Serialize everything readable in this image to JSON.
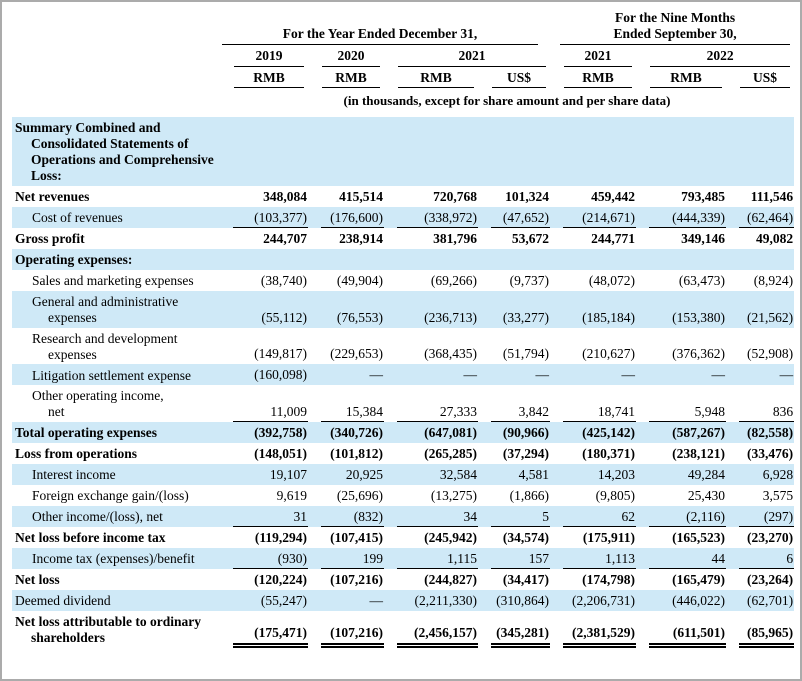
{
  "table": {
    "group_headers": [
      {
        "label": "For the Year Ended December 31,",
        "colspan": 4
      },
      {
        "label": "For the Nine Months\nEnded September 30,",
        "colspan": 3
      }
    ],
    "year_headers": [
      {
        "label": "2019",
        "colspan": 1
      },
      {
        "label": "2020",
        "colspan": 1
      },
      {
        "label": "2021",
        "colspan": 2
      },
      {
        "label": "2021",
        "colspan": 1
      },
      {
        "label": "2022",
        "colspan": 2
      }
    ],
    "currency_headers": [
      "RMB",
      "RMB",
      "RMB",
      "US$",
      "RMB",
      "RMB",
      "US$"
    ],
    "note": "(in thousands, except for share amount and per share data)",
    "shade_color": "#cfe9f7",
    "rows": [
      {
        "label": "Summary Combined and\nConsolidated Statements of\nOperations and Comprehensive\nLoss:",
        "bold": true,
        "indent": false,
        "shaded": true,
        "underline": "none",
        "values": [
          "",
          "",
          "",
          "",
          "",
          "",
          ""
        ]
      },
      {
        "label": "Net revenues",
        "bold": true,
        "indent": false,
        "shaded": false,
        "underline": "none",
        "values": [
          "348,084",
          "415,514",
          "720,768",
          "101,324",
          "459,442",
          "793,485",
          "111,546"
        ]
      },
      {
        "label": "Cost of revenues",
        "bold": false,
        "indent": true,
        "shaded": true,
        "underline": "single",
        "values": [
          "(103,377)",
          "(176,600)",
          "(338,972)",
          "(47,652)",
          "(214,671)",
          "(444,339)",
          "(62,464)"
        ]
      },
      {
        "label": "Gross profit",
        "bold": true,
        "indent": false,
        "shaded": false,
        "underline": "none",
        "values": [
          "244,707",
          "238,914",
          "381,796",
          "53,672",
          "244,771",
          "349,146",
          "49,082"
        ]
      },
      {
        "label": "Operating expenses:",
        "bold": true,
        "indent": false,
        "shaded": true,
        "underline": "none",
        "values": [
          "",
          "",
          "",
          "",
          "",
          "",
          ""
        ]
      },
      {
        "label": "Sales and marketing expenses",
        "bold": false,
        "indent": true,
        "shaded": false,
        "underline": "none",
        "values": [
          "(38,740)",
          "(49,904)",
          "(69,266)",
          "(9,737)",
          "(48,072)",
          "(63,473)",
          "(8,924)"
        ]
      },
      {
        "label": "General and administrative\nexpenses",
        "bold": false,
        "indent": true,
        "shaded": true,
        "underline": "none",
        "values": [
          "(55,112)",
          "(76,553)",
          "(236,713)",
          "(33,277)",
          "(185,184)",
          "(153,380)",
          "(21,562)"
        ]
      },
      {
        "label": "Research and development\nexpenses",
        "bold": false,
        "indent": true,
        "shaded": false,
        "underline": "none",
        "values": [
          "(149,817)",
          "(229,653)",
          "(368,435)",
          "(51,794)",
          "(210,627)",
          "(376,362)",
          "(52,908)"
        ]
      },
      {
        "label": "Litigation settlement expense",
        "bold": false,
        "indent": true,
        "shaded": true,
        "underline": "none",
        "values": [
          "(160,098)",
          "—",
          "—",
          "—",
          "—",
          "—",
          "—"
        ]
      },
      {
        "label": "Other operating income,\nnet",
        "bold": false,
        "indent": true,
        "shaded": false,
        "underline": "single",
        "values": [
          "11,009",
          "15,384",
          "27,333",
          "3,842",
          "18,741",
          "5,948",
          "836"
        ]
      },
      {
        "label": "Total operating expenses",
        "bold": true,
        "indent": false,
        "shaded": true,
        "underline": "none",
        "values": [
          "(392,758)",
          "(340,726)",
          "(647,081)",
          "(90,966)",
          "(425,142)",
          "(587,267)",
          "(82,558)"
        ]
      },
      {
        "label": "Loss from operations",
        "bold": true,
        "indent": false,
        "shaded": false,
        "underline": "none",
        "values": [
          "(148,051)",
          "(101,812)",
          "(265,285)",
          "(37,294)",
          "(180,371)",
          "(238,121)",
          "(33,476)"
        ]
      },
      {
        "label": "Interest income",
        "bold": false,
        "indent": true,
        "shaded": true,
        "underline": "none",
        "values": [
          "19,107",
          "20,925",
          "32,584",
          "4,581",
          "14,203",
          "49,284",
          "6,928"
        ]
      },
      {
        "label": "Foreign exchange gain/(loss)",
        "bold": false,
        "indent": true,
        "shaded": false,
        "underline": "none",
        "values": [
          "9,619",
          "(25,696)",
          "(13,275)",
          "(1,866)",
          "(9,805)",
          "25,430",
          "3,575"
        ]
      },
      {
        "label": "Other income/(loss), net",
        "bold": false,
        "indent": true,
        "shaded": true,
        "underline": "single",
        "values": [
          "31",
          "(832)",
          "34",
          "5",
          "62",
          "(2,116)",
          "(297)"
        ]
      },
      {
        "label": "Net loss before income tax",
        "bold": true,
        "indent": false,
        "shaded": false,
        "underline": "none",
        "values": [
          "(119,294)",
          "(107,415)",
          "(245,942)",
          "(34,574)",
          "(175,911)",
          "(165,523)",
          "(23,270)"
        ]
      },
      {
        "label": "Income tax (expenses)/benefit",
        "bold": false,
        "indent": true,
        "shaded": true,
        "underline": "single",
        "values": [
          "(930)",
          "199",
          "1,115",
          "157",
          "1,113",
          "44",
          "6"
        ]
      },
      {
        "label": "Net loss",
        "bold": true,
        "indent": false,
        "shaded": false,
        "underline": "none",
        "values": [
          "(120,224)",
          "(107,216)",
          "(244,827)",
          "(34,417)",
          "(174,798)",
          "(165,479)",
          "(23,264)"
        ]
      },
      {
        "label": "Deemed dividend",
        "bold": false,
        "indent": false,
        "shaded": true,
        "underline": "none",
        "values": [
          "(55,247)",
          "—",
          "(2,211,330)",
          "(310,864)",
          "(2,206,731)",
          "(446,022)",
          "(62,701)"
        ]
      },
      {
        "label": "Net loss attributable to ordinary\nshareholders",
        "bold": true,
        "indent": false,
        "shaded": false,
        "underline": "double",
        "values": [
          "(175,471)",
          "(107,216)",
          "(2,456,157)",
          "(345,281)",
          "(2,381,529)",
          "(611,501)",
          "(85,965)"
        ]
      }
    ]
  }
}
